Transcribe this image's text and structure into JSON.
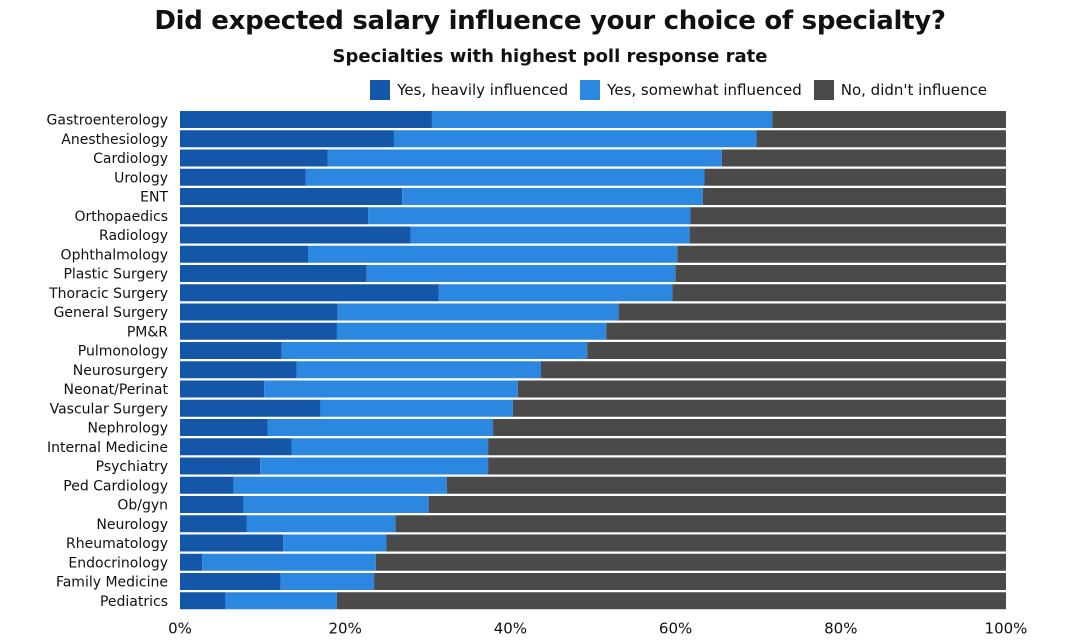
{
  "chart_data": {
    "type": "bar",
    "orientation": "horizontal",
    "stacked": true,
    "title": "Did expected salary influence your choice of specialty?",
    "subtitle": "Specialties with highest poll response rate",
    "xlim": [
      0,
      100
    ],
    "x_ticks": [
      "0%",
      "20%",
      "40%",
      "60%",
      "80%",
      "100%"
    ],
    "legend_position": "top-right",
    "categories": [
      "Gastroenterology",
      "Anesthesiology",
      "Cardiology",
      "Urology",
      "ENT",
      "Orthopaedics",
      "Radiology",
      "Ophthalmology",
      "Plastic Surgery",
      "Thoracic Surgery",
      "General Surgery",
      "PM&R",
      "Pulmonology",
      "Neurosurgery",
      "Neonat/Perinat",
      "Vascular Surgery",
      "Nephrology",
      "Internal Medicine",
      "Psychiatry",
      "Ped Cardiology",
      "Ob/gyn",
      "Neurology",
      "Rheumatology",
      "Endocrinology",
      "Family Medicine",
      "Pediatrics"
    ],
    "series": [
      {
        "name": "Yes, heavily influenced",
        "color": "#1457A8",
        "values": [
          30.5,
          25.9,
          17.9,
          15.2,
          26.9,
          22.8,
          27.9,
          15.5,
          22.6,
          31.3,
          19.1,
          19.0,
          12.3,
          14.1,
          10.2,
          17.0,
          10.6,
          13.5,
          9.7,
          6.5,
          7.7,
          8.1,
          12.5,
          2.7,
          12.2,
          5.5
        ]
      },
      {
        "name": "Yes, somewhat influenced",
        "color": "#2B87E0",
        "values": [
          41.2,
          43.9,
          47.7,
          48.3,
          36.4,
          39.0,
          33.8,
          44.7,
          37.4,
          28.3,
          34.0,
          32.6,
          37.0,
          29.6,
          30.7,
          23.3,
          27.3,
          23.8,
          27.6,
          25.8,
          22.4,
          18.0,
          12.5,
          21.0,
          11.3,
          13.5
        ]
      },
      {
        "name": "No, didn't influence",
        "color": "#4A4A4A",
        "values": [
          28.3,
          30.2,
          34.4,
          36.5,
          36.7,
          38.2,
          38.3,
          39.8,
          40.0,
          40.4,
          46.9,
          48.4,
          50.7,
          56.3,
          59.1,
          59.7,
          62.1,
          62.7,
          62.7,
          67.7,
          69.9,
          73.9,
          75.0,
          76.3,
          76.5,
          81.0
        ]
      }
    ]
  }
}
